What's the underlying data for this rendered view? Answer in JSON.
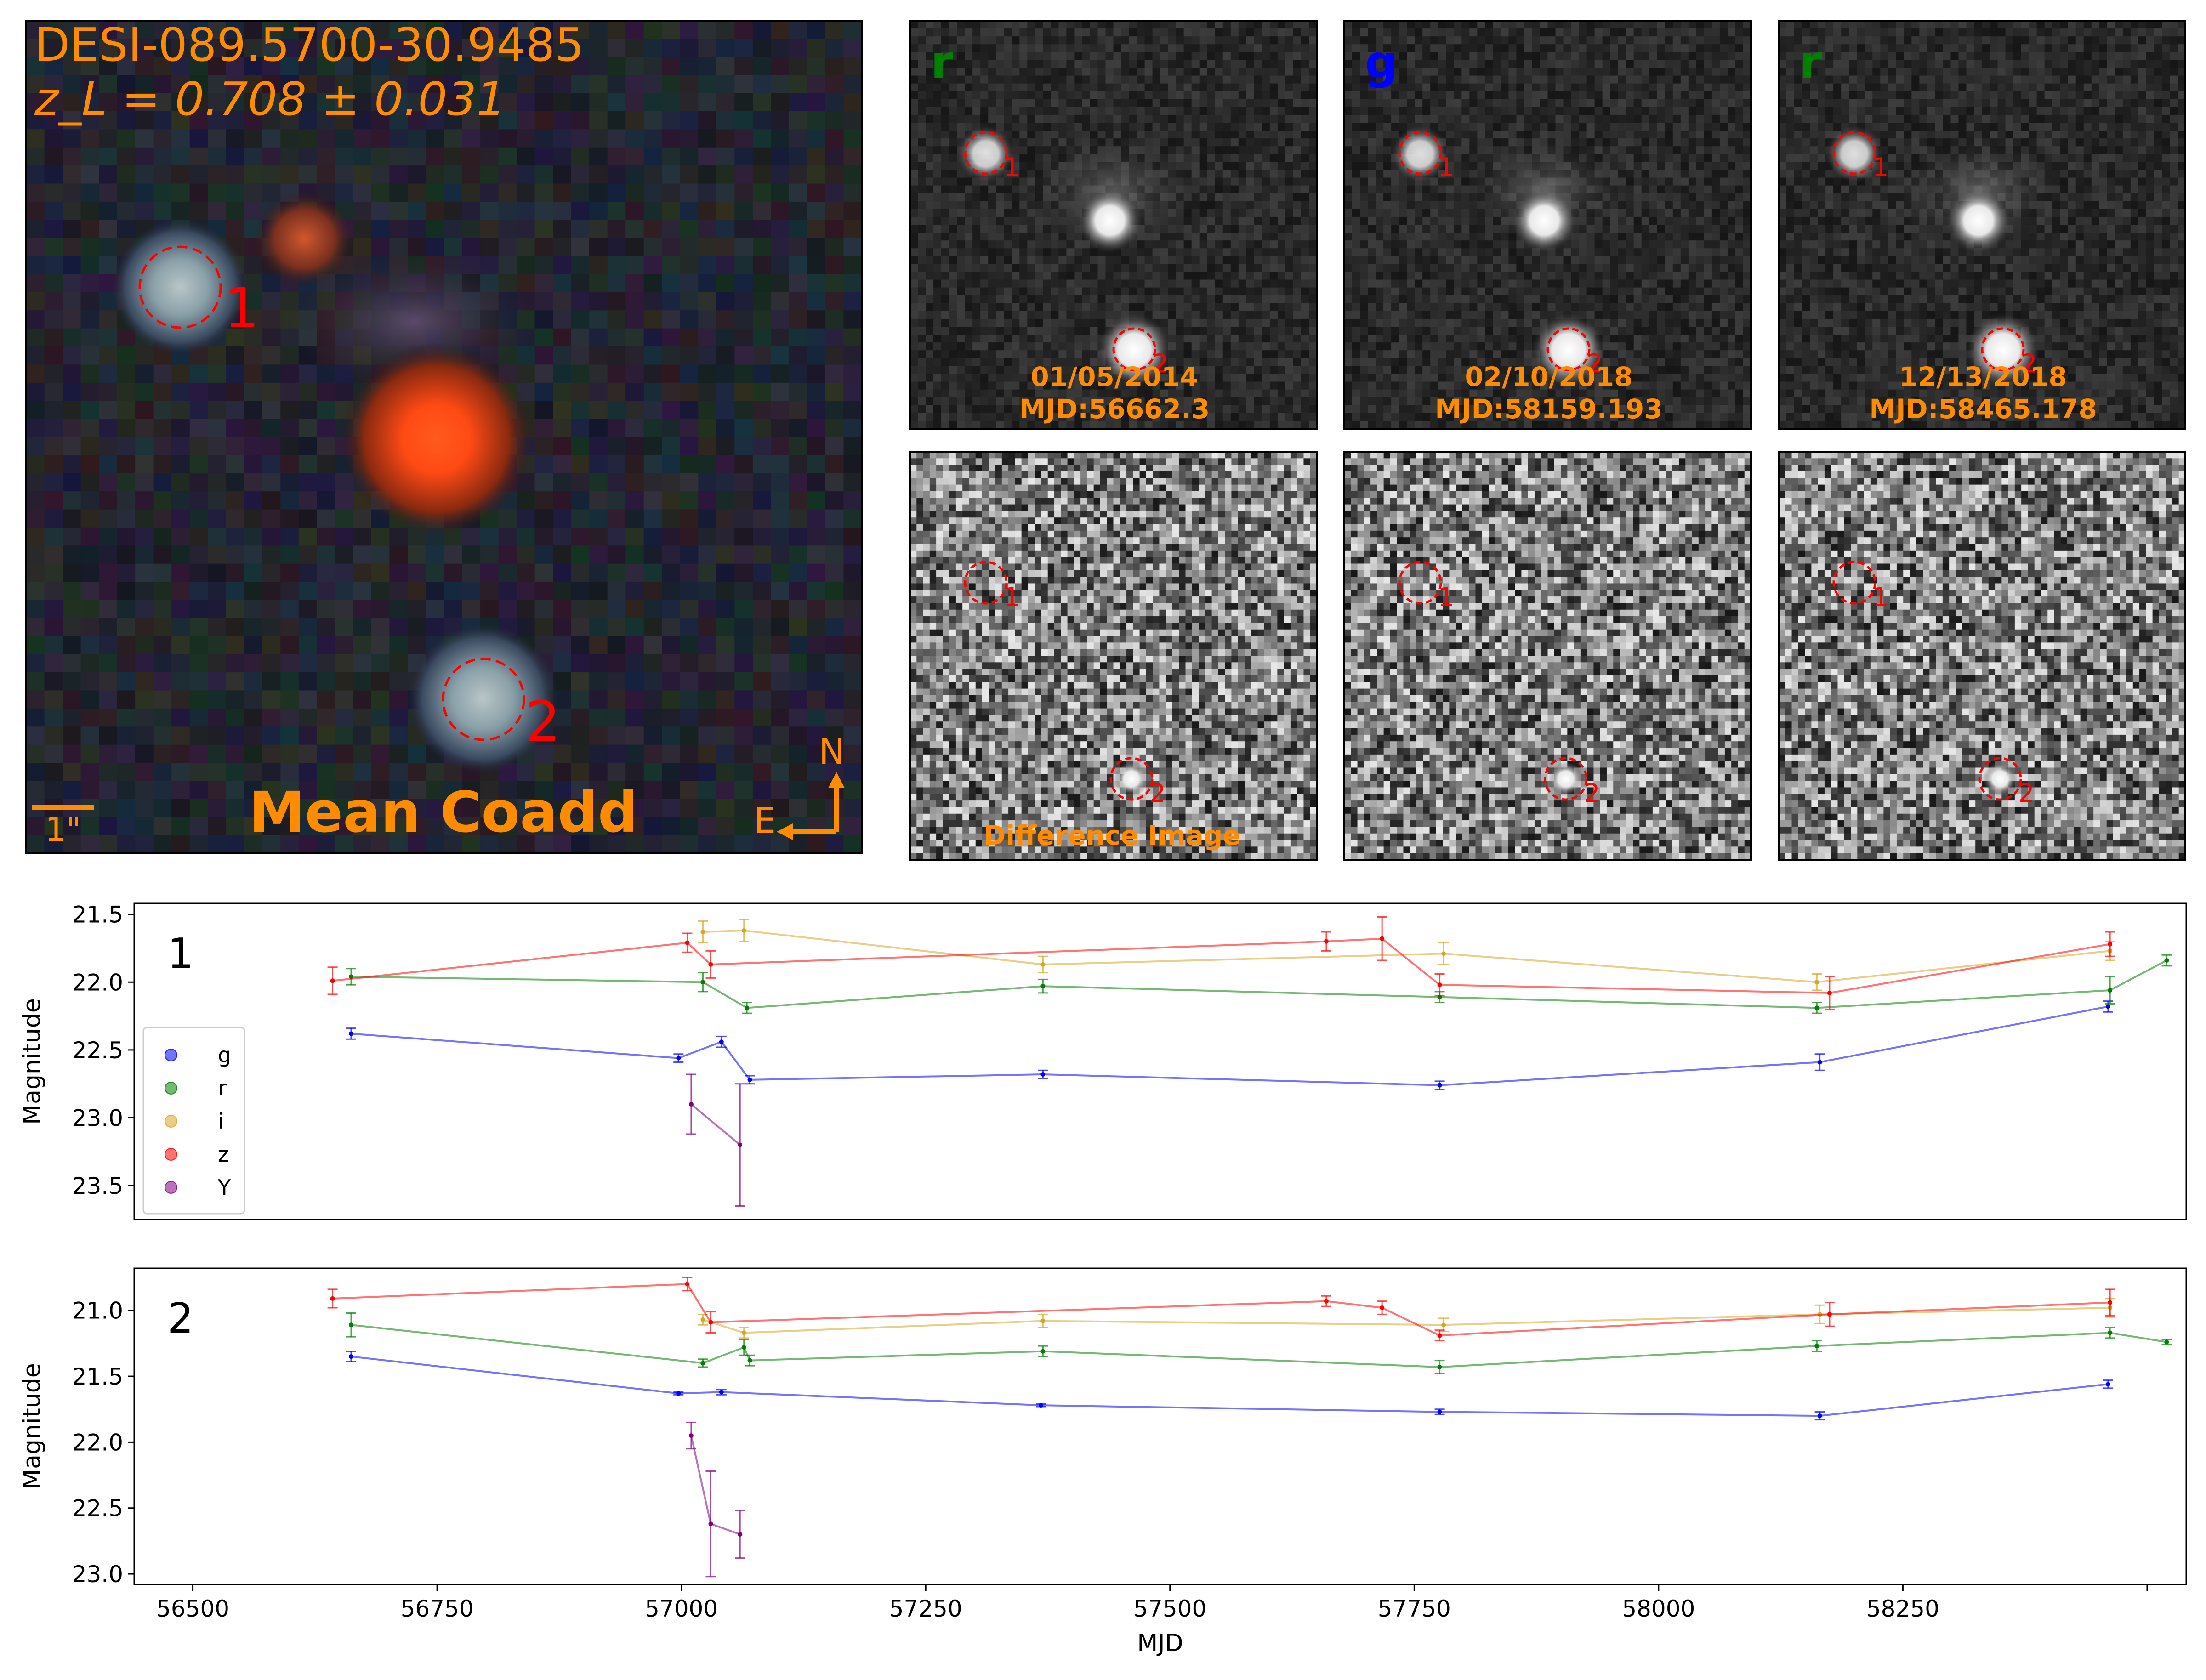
{
  "coadd": {
    "name": "DESI-089.5700-30.9485",
    "redshift": "z_L = 0.708 ± 0.031",
    "title": "Mean Coadd",
    "scale_label": "1\"",
    "north_label": "N",
    "east_label": "E",
    "sources": [
      {
        "label": "1"
      },
      {
        "label": "2"
      }
    ]
  },
  "epochs": [
    {
      "band": "r",
      "band_color": "#008000",
      "date": "01/05/2014",
      "mjd": "MJD:56662.3"
    },
    {
      "band": "g",
      "band_color": "#0000ff",
      "date": "02/10/2018",
      "mjd": "MJD:58159.193"
    },
    {
      "band": "r",
      "band_color": "#008000",
      "date": "12/13/2018",
      "mjd": "MJD:58465.178"
    }
  ],
  "difference_label": "Difference Image",
  "colors": {
    "g": "#0000ff",
    "r": "#008000",
    "i": "#daa520",
    "z": "#ff0000",
    "Y": "#800080",
    "annotation": "#ff8c00",
    "circle": "#ff0000"
  },
  "chart_data": [
    {
      "type": "line",
      "panel_label": "1",
      "xlabel": "MJD",
      "ylabel": "Magnitude",
      "xlim": [
        56440,
        58540
      ],
      "ylim": [
        23.75,
        21.42
      ],
      "yticks": [
        21.5,
        22.0,
        22.5,
        23.0,
        23.5
      ],
      "legend_position": "center-left",
      "series": [
        {
          "name": "g",
          "points": [
            [
              56662,
              22.38,
              0.04
            ],
            [
              56997,
              22.56,
              0.03
            ],
            [
              57041,
              22.44,
              0.04
            ],
            [
              57070,
              22.72,
              0.03
            ],
            [
              57370,
              22.68,
              0.03
            ],
            [
              57776,
              22.76,
              0.03
            ],
            [
              58165,
              22.59,
              0.06
            ],
            [
              58460,
              22.18,
              0.04
            ]
          ]
        },
        {
          "name": "r",
          "points": [
            [
              56662,
              21.96,
              0.06
            ],
            [
              57022,
              22.0,
              0.07
            ],
            [
              57067,
              22.19,
              0.04
            ],
            [
              57370,
              22.03,
              0.05
            ],
            [
              57776,
              22.11,
              0.04
            ],
            [
              58162,
              22.19,
              0.04
            ],
            [
              58462,
              22.06,
              0.1
            ],
            [
              58520,
              21.84,
              0.04
            ]
          ]
        },
        {
          "name": "i",
          "points": [
            [
              57022,
              21.63,
              0.08
            ],
            [
              57064,
              21.62,
              0.08
            ],
            [
              57370,
              21.87,
              0.06
            ],
            [
              57780,
              21.79,
              0.08
            ],
            [
              58162,
              22.0,
              0.06
            ],
            [
              58462,
              21.77,
              0.07
            ]
          ]
        },
        {
          "name": "z",
          "points": [
            [
              56643,
              21.99,
              0.1
            ],
            [
              57006,
              21.71,
              0.07
            ],
            [
              57030,
              21.87,
              0.1
            ],
            [
              57660,
              21.7,
              0.07
            ],
            [
              57717,
              21.68,
              0.16
            ],
            [
              57776,
              22.02,
              0.08
            ],
            [
              58175,
              22.08,
              0.12
            ],
            [
              58462,
              21.72,
              0.09
            ]
          ]
        },
        {
          "name": "Y",
          "points": [
            [
              57010,
              22.9,
              0.22
            ],
            [
              57060,
              23.2,
              0.45
            ]
          ]
        }
      ]
    },
    {
      "type": "line",
      "panel_label": "2",
      "xlabel": "MJD",
      "ylabel": "Magnitude",
      "xlim": [
        56440,
        58540
      ],
      "ylim": [
        23.08,
        20.68
      ],
      "yticks": [
        21.0,
        21.5,
        22.0,
        22.5,
        23.0
      ],
      "xticks": [
        56500,
        56750,
        57000,
        57250,
        57500,
        57750,
        58000,
        58250
      ],
      "series": [
        {
          "name": "g",
          "points": [
            [
              56662,
              21.35,
              0.04
            ],
            [
              56997,
              21.63,
              0.01
            ],
            [
              57041,
              21.62,
              0.02
            ],
            [
              57368,
              21.72,
              0.01
            ],
            [
              57776,
              21.77,
              0.02
            ],
            [
              58165,
              21.8,
              0.03
            ],
            [
              58460,
              21.56,
              0.03
            ]
          ]
        },
        {
          "name": "r",
          "points": [
            [
              56662,
              21.11,
              0.09
            ],
            [
              57022,
              21.4,
              0.03
            ],
            [
              57064,
              21.28,
              0.06
            ],
            [
              57070,
              21.38,
              0.04
            ],
            [
              57370,
              21.31,
              0.04
            ],
            [
              57776,
              21.43,
              0.05
            ],
            [
              58162,
              21.27,
              0.04
            ],
            [
              58462,
              21.17,
              0.04
            ],
            [
              58520,
              21.24,
              0.02
            ]
          ]
        },
        {
          "name": "i",
          "points": [
            [
              57022,
              21.07,
              0.04
            ],
            [
              57064,
              21.17,
              0.04
            ],
            [
              57370,
              21.08,
              0.05
            ],
            [
              57780,
              21.11,
              0.05
            ],
            [
              58165,
              21.03,
              0.07
            ],
            [
              58462,
              20.98,
              0.07
            ]
          ]
        },
        {
          "name": "z",
          "points": [
            [
              56643,
              20.91,
              0.07
            ],
            [
              57006,
              20.8,
              0.05
            ],
            [
              57030,
              21.09,
              0.08
            ],
            [
              57660,
              20.93,
              0.04
            ],
            [
              57717,
              20.98,
              0.05
            ],
            [
              57776,
              21.19,
              0.04
            ],
            [
              58175,
              21.03,
              0.09
            ],
            [
              58462,
              20.94,
              0.1
            ]
          ]
        },
        {
          "name": "Y",
          "points": [
            [
              57010,
              21.95,
              0.1
            ],
            [
              57030,
              22.62,
              0.4
            ],
            [
              57060,
              22.7,
              0.18
            ]
          ]
        }
      ]
    }
  ]
}
